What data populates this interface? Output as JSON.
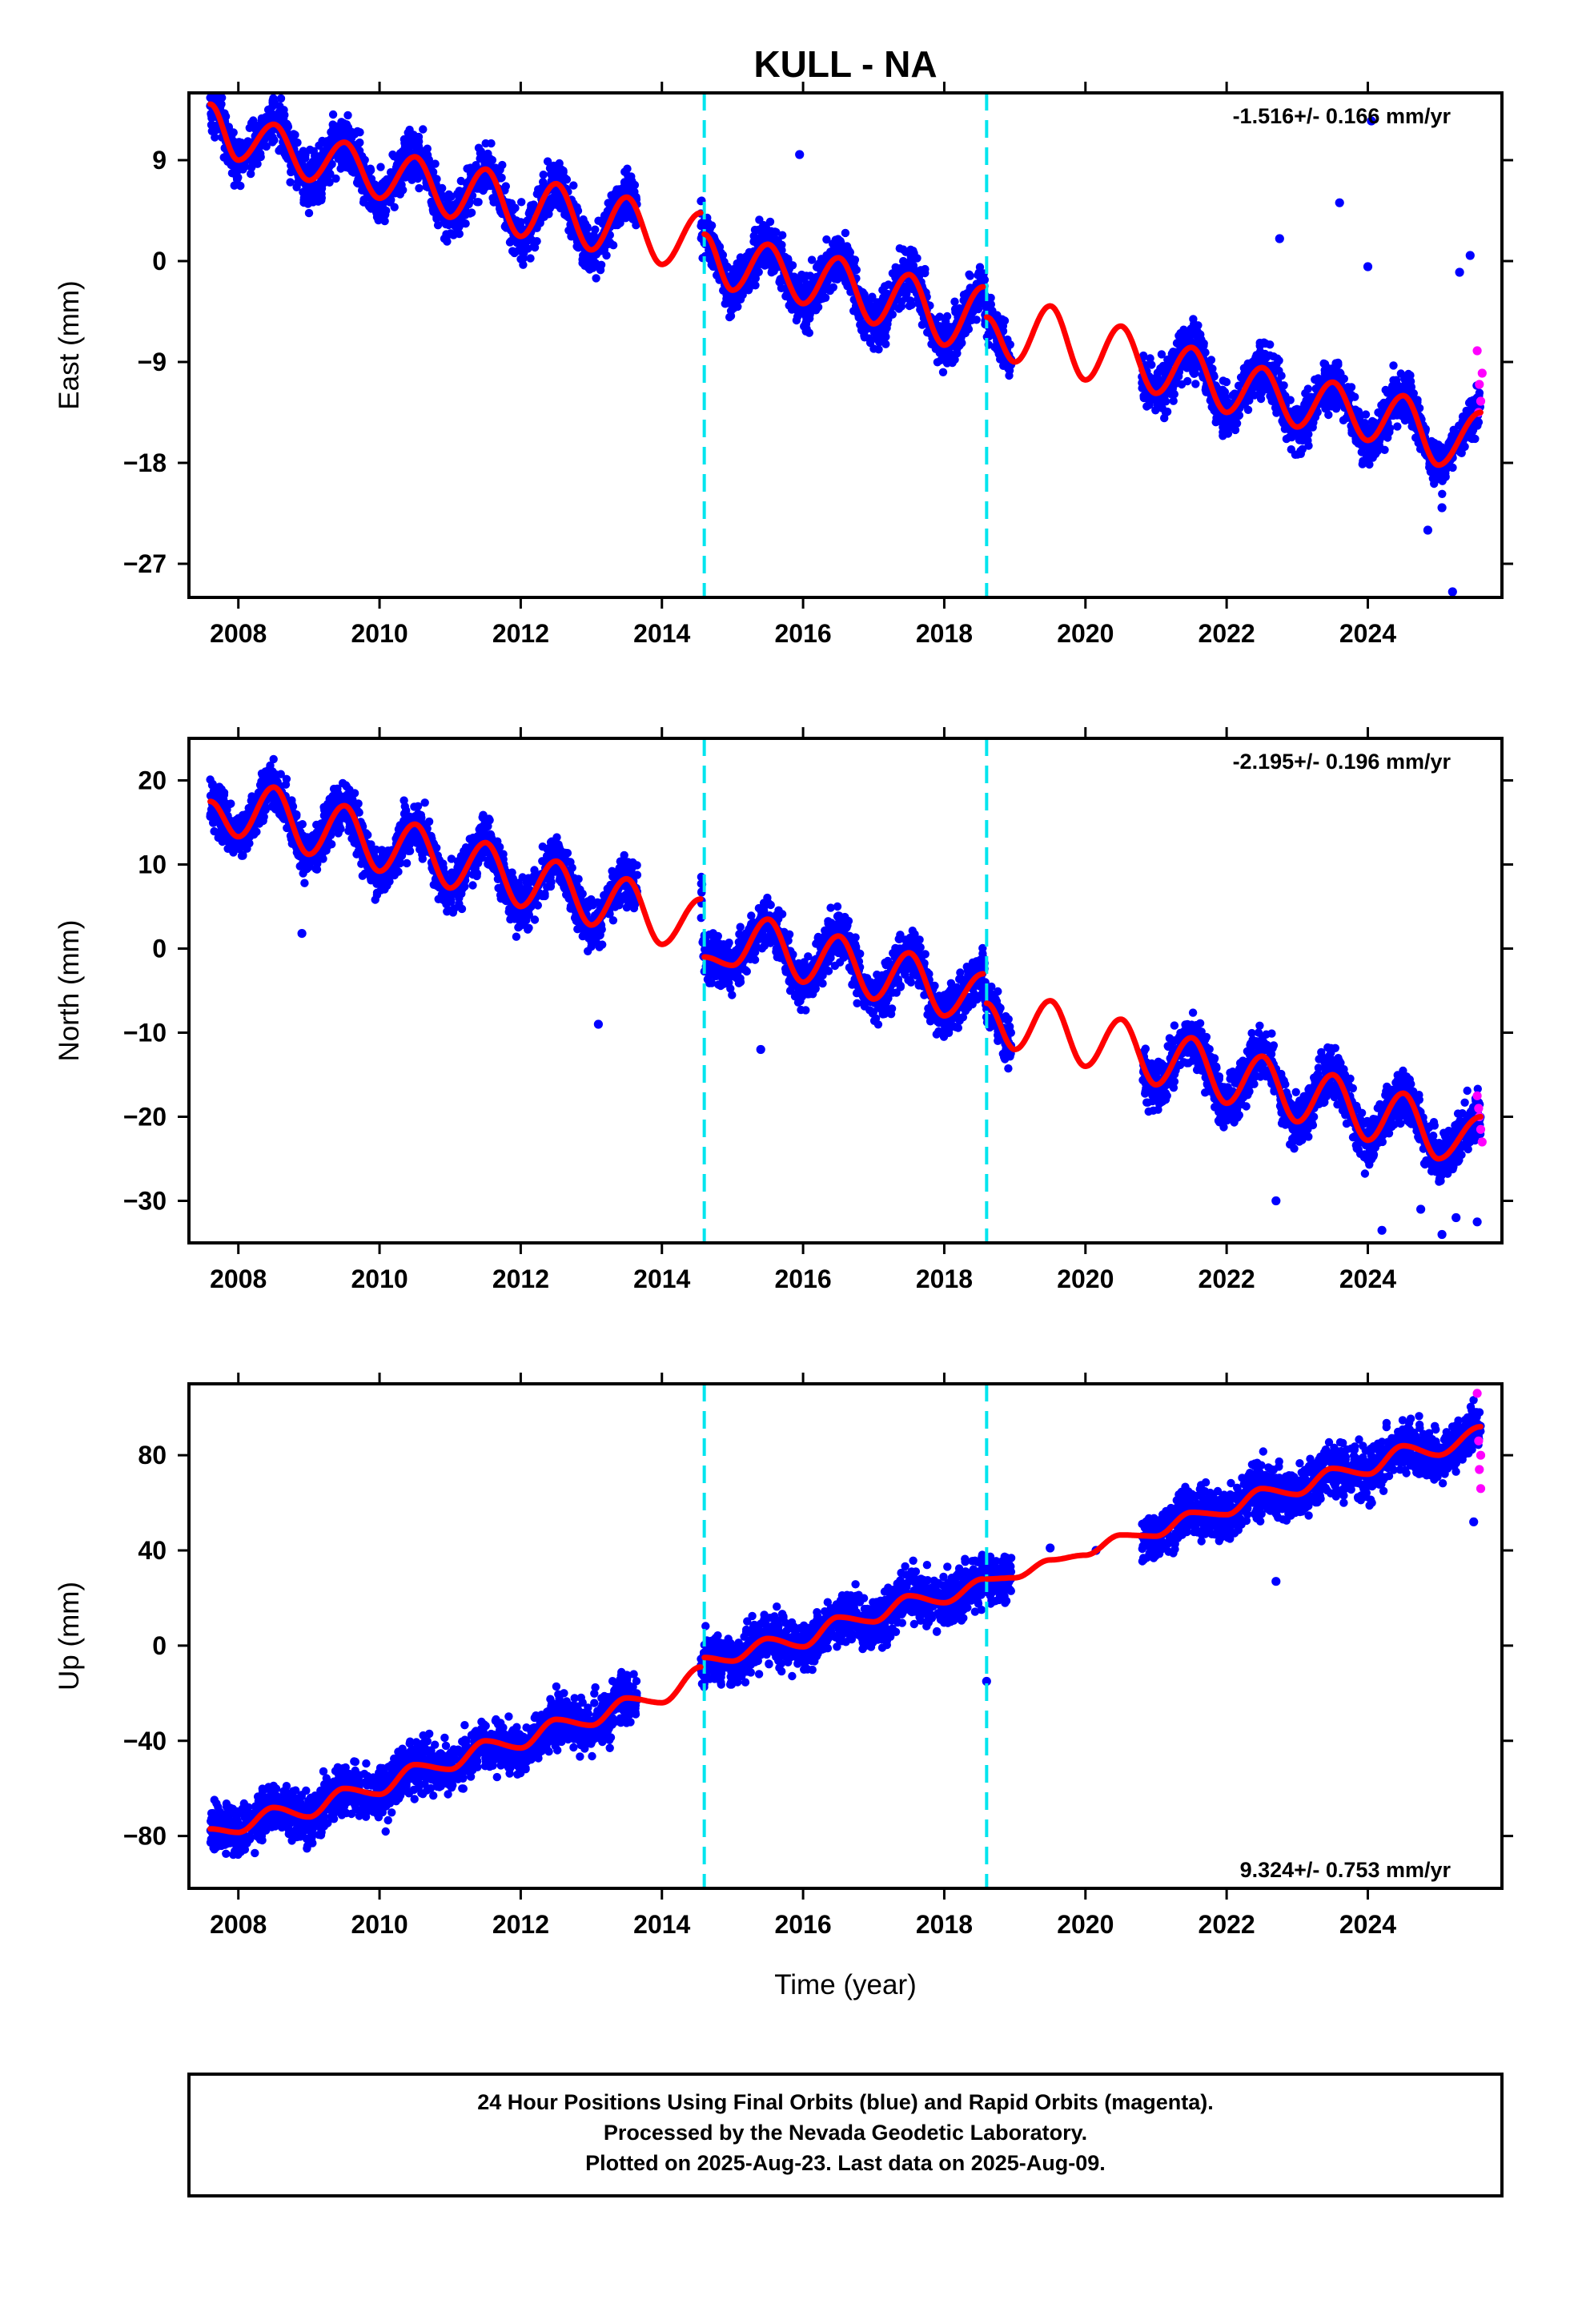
{
  "title": "KULL - NA",
  "xlabel": "Time (year)",
  "caption": {
    "line1": "24 Hour Positions Using Final Orbits (blue) and Rapid Orbits (magenta).",
    "line2": "Processed by the Nevada Geodetic Laboratory.",
    "line3": "Plotted on 2025-Aug-23. Last data on 2025-Aug-09."
  },
  "colors": {
    "final_orbits": "#0000ff",
    "rapid_orbits": "#ff00ff",
    "model_fit": "#ff0000",
    "event_lines": "#00e5ee",
    "frame": "#000000"
  },
  "chart_data": [
    {
      "type": "scatter",
      "panel": "east",
      "ylabel": "East (mm)",
      "rate_text": "-1.516+/- 0.166 mm/yr",
      "rate_position": "top-right",
      "xlim": [
        2007.3,
        2025.9
      ],
      "ylim": [
        -30,
        15
      ],
      "xticks": [
        2008,
        2010,
        2012,
        2014,
        2016,
        2018,
        2020,
        2022,
        2024
      ],
      "yticks": [
        9,
        0,
        -9,
        -18,
        -27
      ],
      "events": [
        2014.6,
        2018.6
      ],
      "series": [
        {
          "kind": "model",
          "segments": [
            {
              "x": [
                2007.6,
                2008.0,
                2008.5,
                2009.0,
                2009.5,
                2010.0,
                2010.5,
                2011.0,
                2011.5,
                2012.0,
                2012.5,
                2013.0,
                2013.5,
                2014.0,
                2014.55
              ],
              "y": [
                14.0,
                9.0,
                12.2,
                7.2,
                10.6,
                5.6,
                9.3,
                3.9,
                8.2,
                2.2,
                6.9,
                1.0,
                5.7,
                -0.3,
                4.3
              ]
            },
            {
              "x": [
                2014.6,
                2015.0,
                2015.5,
                2016.0,
                2016.5,
                2017.0,
                2017.5,
                2018.0,
                2018.55
              ],
              "y": [
                2.4,
                -2.6,
                1.5,
                -3.8,
                0.3,
                -5.6,
                -1.2,
                -7.5,
                -2.3
              ]
            },
            {
              "x": [
                2018.6,
                2019.0,
                2019.5,
                2020.0,
                2020.5,
                2021.0,
                2021.5,
                2022.0,
                2022.5,
                2023.0,
                2023.5,
                2024.0,
                2024.5,
                2025.0,
                2025.6
              ],
              "y": [
                -5.0,
                -9.0,
                -4.0,
                -10.6,
                -5.8,
                -11.8,
                -7.7,
                -13.5,
                -9.5,
                -14.8,
                -10.8,
                -16.0,
                -12.0,
                -18.2,
                -13.5
              ]
            }
          ]
        },
        {
          "kind": "final_orbits",
          "ranges": [
            [
              2007.6,
              2013.65
            ],
            [
              2014.55,
              2018.95
            ],
            [
              2020.8,
              2025.6
            ]
          ],
          "outliers": [
            [
              2023.6,
              5.2
            ],
            [
              2024.0,
              -0.5
            ],
            [
              2024.05,
              12.5
            ],
            [
              2024.85,
              -24.0
            ],
            [
              2025.2,
              -29.5
            ],
            [
              2025.05,
              -22.0
            ],
            [
              2025.45,
              0.5
            ],
            [
              2025.3,
              -1.0
            ],
            [
              2015.95,
              9.5
            ],
            [
              2022.75,
              2.0
            ]
          ]
        },
        {
          "kind": "rapid_orbits",
          "points": [
            [
              2025.55,
              -8.0
            ],
            [
              2025.58,
              -11.0
            ],
            [
              2025.6,
              -12.5
            ],
            [
              2025.62,
              -10.0
            ],
            [
              2025.57,
              -13.5
            ]
          ]
        }
      ]
    },
    {
      "type": "scatter",
      "panel": "north",
      "ylabel": "North (mm)",
      "rate_text": "-2.195+/- 0.196 mm/yr",
      "rate_position": "top-right",
      "xlim": [
        2007.3,
        2025.9
      ],
      "ylim": [
        -35,
        25
      ],
      "xticks": [
        2008,
        2010,
        2012,
        2014,
        2016,
        2018,
        2020,
        2022,
        2024
      ],
      "yticks": [
        20,
        10,
        0,
        -10,
        -20,
        -30
      ],
      "events": [
        2014.6,
        2018.6
      ],
      "series": [
        {
          "kind": "model",
          "segments": [
            {
              "x": [
                2007.6,
                2008.0,
                2008.5,
                2009.0,
                2009.5,
                2010.0,
                2010.5,
                2011.0,
                2011.5,
                2012.0,
                2012.5,
                2013.0,
                2013.5,
                2014.0,
                2014.55
              ],
              "y": [
                17.5,
                13.3,
                19.2,
                11.2,
                17.0,
                9.2,
                14.8,
                7.2,
                12.6,
                5.0,
                10.4,
                2.8,
                8.3,
                0.5,
                5.9
              ]
            },
            {
              "x": [
                2014.6,
                2015.0,
                2015.5,
                2016.0,
                2016.5,
                2017.0,
                2017.5,
                2018.0,
                2018.55
              ],
              "y": [
                -1.0,
                -2.0,
                3.5,
                -4.0,
                1.5,
                -6.0,
                -0.5,
                -8.0,
                -3.0
              ]
            },
            {
              "x": [
                2018.6,
                2019.0,
                2019.5,
                2020.0,
                2020.5,
                2021.0,
                2021.5,
                2022.0,
                2022.5,
                2023.0,
                2023.5,
                2024.0,
                2024.5,
                2025.0,
                2025.6
              ],
              "y": [
                -6.5,
                -12.0,
                -6.2,
                -14.0,
                -8.4,
                -16.2,
                -10.6,
                -18.4,
                -12.8,
                -20.6,
                -15.0,
                -22.8,
                -17.2,
                -25.0,
                -20.0
              ]
            }
          ]
        },
        {
          "kind": "final_orbits",
          "ranges": [
            [
              2007.6,
              2013.65
            ],
            [
              2014.55,
              2018.95
            ],
            [
              2020.8,
              2025.6
            ]
          ],
          "outliers": [
            [
              2008.9,
              1.8
            ],
            [
              2013.1,
              -9.0
            ],
            [
              2022.7,
              -30.0
            ],
            [
              2024.2,
              -33.5
            ],
            [
              2024.75,
              -31.0
            ],
            [
              2025.05,
              -34.0
            ],
            [
              2025.25,
              -32.0
            ],
            [
              2025.55,
              -32.5
            ],
            [
              2015.4,
              -12.0
            ]
          ]
        },
        {
          "kind": "rapid_orbits",
          "points": [
            [
              2025.55,
              -17.5
            ],
            [
              2025.58,
              -20.0
            ],
            [
              2025.6,
              -21.5
            ],
            [
              2025.62,
              -23.0
            ],
            [
              2025.57,
              -19.0
            ]
          ]
        }
      ]
    },
    {
      "type": "scatter",
      "panel": "up",
      "ylabel": "Up (mm)",
      "rate_text": "9.324+/- 0.753 mm/yr",
      "rate_position": "bottom-right",
      "xlim": [
        2007.3,
        2025.9
      ],
      "ylim": [
        -102,
        110
      ],
      "xticks": [
        2008,
        2010,
        2012,
        2014,
        2016,
        2018,
        2020,
        2022,
        2024
      ],
      "yticks": [
        80,
        40,
        0,
        -40,
        -80
      ],
      "events": [
        2014.6,
        2018.6
      ],
      "series": [
        {
          "kind": "model",
          "segments": [
            {
              "x": [
                2007.6,
                2008.0,
                2008.5,
                2009.0,
                2009.5,
                2010.0,
                2010.5,
                2011.0,
                2011.5,
                2012.0,
                2012.5,
                2013.0,
                2013.5,
                2014.0,
                2014.55
              ],
              "y": [
                -77.0,
                -78.5,
                -68.0,
                -72.0,
                -60.0,
                -62.5,
                -50.0,
                -52.0,
                -40.0,
                -43.0,
                -31.0,
                -33.5,
                -22.0,
                -24.0,
                -9.0
              ]
            },
            {
              "x": [
                2014.6,
                2015.0,
                2015.5,
                2016.0,
                2016.5,
                2017.0,
                2017.5,
                2018.0,
                2018.55
              ],
              "y": [
                -5.0,
                -6.5,
                3.0,
                -0.5,
                12.0,
                10.0,
                21.0,
                18.0,
                28.0
              ]
            },
            {
              "x": [
                2018.6,
                2019.0,
                2019.5,
                2020.0,
                2020.5,
                2021.0,
                2021.5,
                2022.0,
                2022.5,
                2023.0,
                2023.5,
                2024.0,
                2024.5,
                2025.0,
                2025.6
              ],
              "y": [
                28.0,
                28.5,
                36.0,
                38.0,
                46.5,
                46.0,
                56.0,
                55.0,
                66.0,
                63.5,
                74.5,
                72.0,
                84.0,
                80.0,
                92.0
              ]
            }
          ]
        },
        {
          "kind": "final_orbits",
          "ranges": [
            [
              2007.6,
              2013.65
            ],
            [
              2014.55,
              2018.95
            ],
            [
              2020.8,
              2025.6
            ]
          ],
          "outliers": [
            [
              2018.6,
              -15.0
            ],
            [
              2022.7,
              27.0
            ],
            [
              2025.5,
              52.0
            ],
            [
              2019.5,
              41.0
            ],
            [
              2020.15,
              40.0
            ]
          ]
        },
        {
          "kind": "rapid_orbits",
          "points": [
            [
              2025.55,
              106.0
            ],
            [
              2025.57,
              86.0
            ],
            [
              2025.6,
              80.0
            ],
            [
              2025.58,
              74.0
            ],
            [
              2025.6,
              66.0
            ]
          ]
        }
      ]
    }
  ]
}
